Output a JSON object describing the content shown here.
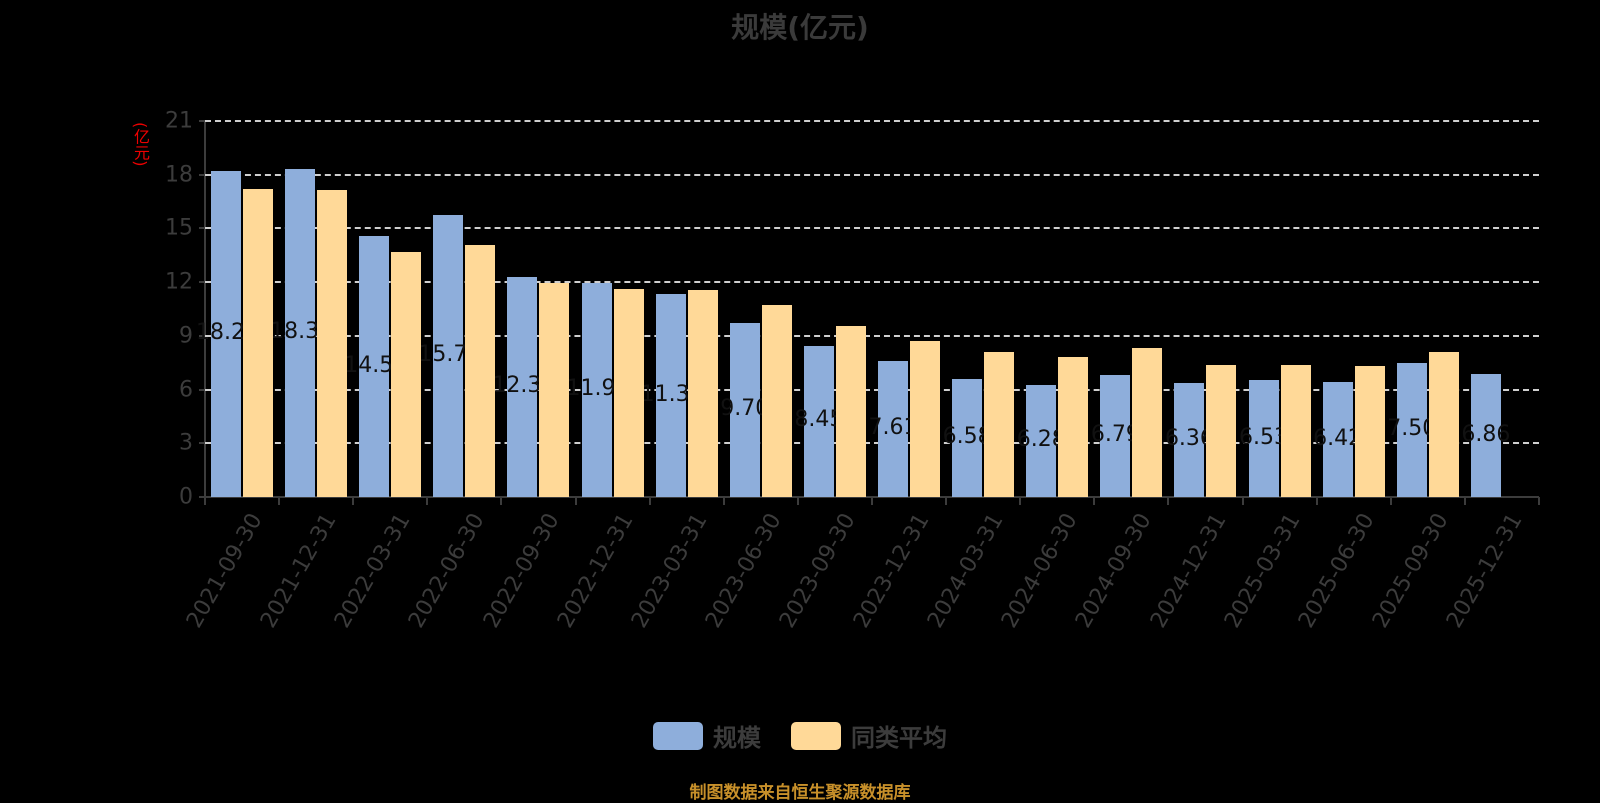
{
  "title": "规模(亿元)",
  "y_unit": "(亿元)",
  "legend": [
    {
      "label": "规模",
      "color": "#8eaedb"
    },
    {
      "label": "同类平均",
      "color": "#ffd998"
    }
  ],
  "footer": "制图数据来自恒生聚源数据库",
  "chart_data": {
    "type": "bar",
    "title": "规模(亿元)",
    "xlabel": "",
    "ylabel": "(亿元)",
    "ylim": [
      0,
      21
    ],
    "yticks": [
      0,
      3,
      6,
      9,
      12,
      15,
      18,
      21
    ],
    "grid": true,
    "legend_position": "bottom",
    "categories": [
      "2021-09-30",
      "2021-12-31",
      "2022-03-31",
      "2022-06-30",
      "2022-09-30",
      "2022-12-31",
      "2023-03-31",
      "2023-06-30",
      "2023-09-30",
      "2023-12-31",
      "2024-03-31",
      "2024-06-30",
      "2024-09-30",
      "2024-12-31",
      "2025-03-31",
      "2025-06-30",
      "2025-09-30",
      "2025-12-31"
    ],
    "series": [
      {
        "name": "规模",
        "color": "#8eaedb",
        "values": [
          18.2,
          18.33,
          14.57,
          15.77,
          12.31,
          11.95,
          11.32,
          9.7,
          8.45,
          7.61,
          6.58,
          6.28,
          6.79,
          6.36,
          6.53,
          6.42,
          7.5,
          6.86
        ],
        "labels": [
          "18.20",
          "18.33",
          "14.57",
          "15.77",
          "12.31",
          "11.95",
          "11.32",
          "9.70",
          "8.45",
          "7.61",
          "6.58",
          "6.28",
          "6.79",
          "6.36",
          "6.53",
          "6.42",
          "7.50",
          "6.86"
        ]
      },
      {
        "name": "同类平均",
        "color": "#ffd998",
        "values": [
          17.2,
          17.15,
          13.7,
          14.1,
          11.95,
          11.6,
          11.55,
          10.7,
          9.55,
          8.7,
          8.1,
          7.8,
          8.3,
          7.4,
          7.35,
          7.3,
          8.1,
          null
        ]
      }
    ]
  }
}
